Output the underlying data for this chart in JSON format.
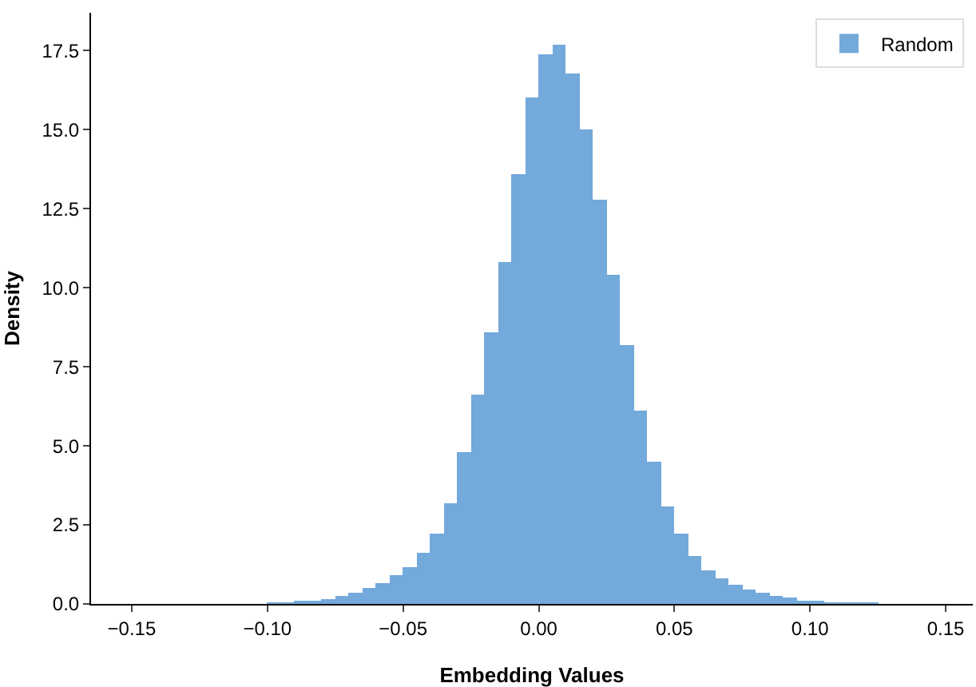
{
  "chart_data": {
    "type": "histogram",
    "xlabel": "Embedding Values",
    "ylabel": "Density",
    "bins": [
      -0.1,
      -0.095,
      -0.09,
      -0.085,
      -0.08,
      -0.075,
      -0.07,
      -0.065,
      -0.06,
      -0.055,
      -0.05,
      -0.045,
      -0.04,
      -0.035,
      -0.03,
      -0.025,
      -0.02,
      -0.015,
      -0.01,
      -0.005,
      0,
      0.005,
      0.01,
      0.015,
      0.02,
      0.025,
      0.03,
      0.035,
      0.04,
      0.045,
      0.05,
      0.055,
      0.06,
      0.065,
      0.07,
      0.075,
      0.08,
      0.085,
      0.09,
      0.095,
      0.1,
      0.105,
      0.11,
      0.115,
      0.12,
      0.125
    ],
    "series": [
      {
        "name": "Random",
        "color": "#5b9bd5",
        "values": [
          0.03,
          0.05,
          0.08,
          0.11,
          0.17,
          0.26,
          0.36,
          0.5,
          0.68,
          0.9,
          1.15,
          1.6,
          2.2,
          3.2,
          4.8,
          6.6,
          8.6,
          10.8,
          13.6,
          16.0,
          17.4,
          17.7,
          16.8,
          15.0,
          12.8,
          10.4,
          8.2,
          6.1,
          4.5,
          3.1,
          2.2,
          1.5,
          1.05,
          0.8,
          0.6,
          0.45,
          0.33,
          0.25,
          0.18,
          0.12,
          0.08,
          0.05,
          0.04,
          0.03,
          0.02
        ]
      }
    ],
    "xlim": [
      -0.165,
      0.16
    ],
    "xticks": [
      {
        "value": -0.15,
        "label": "−0.15"
      },
      {
        "value": -0.1,
        "label": "−0.10"
      },
      {
        "value": -0.05,
        "label": "−0.05"
      },
      {
        "value": 0,
        "label": "0.00"
      },
      {
        "value": 0.05,
        "label": "0.05"
      },
      {
        "value": 0.1,
        "label": "0.10"
      },
      {
        "value": 0.15,
        "label": "0.15"
      }
    ],
    "ylim": [
      0,
      18.7
    ],
    "yticks": [
      {
        "value": 0,
        "label": "0.0"
      },
      {
        "value": 2.5,
        "label": "2.5"
      },
      {
        "value": 5,
        "label": "5.0"
      },
      {
        "value": 7.5,
        "label": "7.5"
      },
      {
        "value": 10,
        "label": "10.0"
      },
      {
        "value": 12.5,
        "label": "12.5"
      },
      {
        "value": 15,
        "label": "15.0"
      },
      {
        "value": 17.5,
        "label": "17.5"
      }
    ],
    "grid": false,
    "legend": "top right"
  }
}
